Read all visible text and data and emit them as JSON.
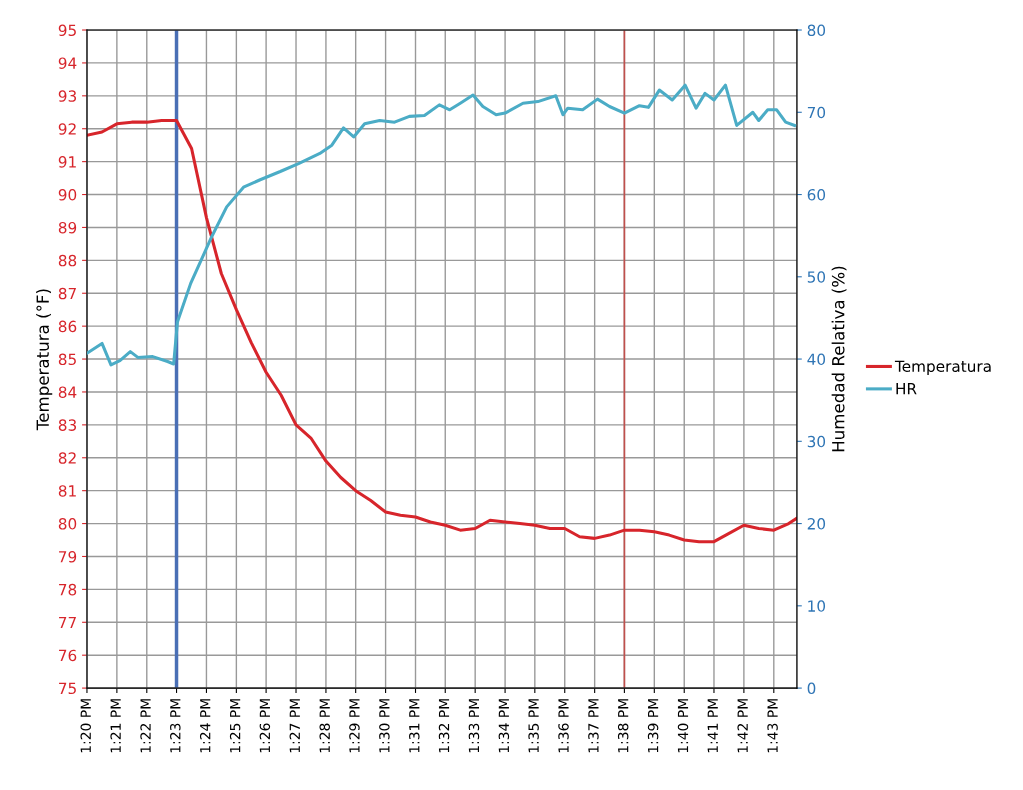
{
  "chart_data": {
    "type": "line",
    "ylabel": "Temperatura (°F)",
    "y2label": "Humedad Relativa (%)",
    "xlim": [
      13.3333,
      13.7296
    ],
    "ylim": [
      75,
      95
    ],
    "y2lim": [
      0,
      80
    ],
    "xticks": [
      {
        "value": 13.3333,
        "label": "1:20 PM"
      },
      {
        "value": 13.35,
        "label": "1:21 PM"
      },
      {
        "value": 13.3667,
        "label": "1:22 PM"
      },
      {
        "value": 13.3833,
        "label": "1:23 PM"
      },
      {
        "value": 13.4,
        "label": "1:24 PM"
      },
      {
        "value": 13.4167,
        "label": "1:25 PM"
      },
      {
        "value": 13.4333,
        "label": "1:26 PM"
      },
      {
        "value": 13.45,
        "label": "1:27 PM"
      },
      {
        "value": 13.4667,
        "label": "1:28 PM"
      },
      {
        "value": 13.4833,
        "label": "1:29 PM"
      },
      {
        "value": 13.5,
        "label": "1:30 PM"
      },
      {
        "value": 13.5167,
        "label": "1:31 PM"
      },
      {
        "value": 13.5333,
        "label": "1:32 PM"
      },
      {
        "value": 13.55,
        "label": "1:33 PM"
      },
      {
        "value": 13.5667,
        "label": "1:34 PM"
      },
      {
        "value": 13.5833,
        "label": "1:35 PM"
      },
      {
        "value": 13.6,
        "label": "1:36 PM"
      },
      {
        "value": 13.6167,
        "label": "1:37 PM"
      },
      {
        "value": 13.6333,
        "label": "1:38 PM"
      },
      {
        "value": 13.65,
        "label": "1:39 PM"
      },
      {
        "value": 13.6667,
        "label": "1:40 PM"
      },
      {
        "value": 13.6833,
        "label": "1:41 PM"
      },
      {
        "value": 13.7,
        "label": "1:42 PM"
      },
      {
        "value": 13.7167,
        "label": "1:43 PM"
      }
    ],
    "yticks": [
      75,
      76,
      77,
      78,
      79,
      80,
      81,
      82,
      83,
      84,
      85,
      86,
      87,
      88,
      89,
      90,
      91,
      92,
      93,
      94,
      95
    ],
    "y2ticks": [
      0,
      10,
      20,
      30,
      40,
      50,
      60,
      70,
      80
    ],
    "grid": true,
    "legend": "right",
    "marker": "none",
    "line_style": "solid",
    "ref_lines": [
      {
        "axis": "x",
        "value": 13.3833,
        "color": "#4a6fb5"
      },
      {
        "axis": "x",
        "value": 13.6333,
        "color": "#c0504d"
      }
    ],
    "series": [
      {
        "name": "Temperatura",
        "color": "#d7252b",
        "x": [
          13.3333,
          13.3417,
          13.35,
          13.3583,
          13.3667,
          13.375,
          13.3833,
          13.3917,
          13.4,
          13.4083,
          13.4167,
          13.425,
          13.4333,
          13.4417,
          13.45,
          13.4583,
          13.4667,
          13.475,
          13.4833,
          13.4917,
          13.5,
          13.5083,
          13.5167,
          13.525,
          13.5333,
          13.5417,
          13.55,
          13.5583,
          13.5667,
          13.575,
          13.5833,
          13.5917,
          13.6,
          13.6083,
          13.6167,
          13.625,
          13.6333,
          13.6417,
          13.65,
          13.6583,
          13.6667,
          13.675,
          13.6833,
          13.6917,
          13.7,
          13.7083,
          13.7167,
          13.725,
          13.7292
        ],
        "values": [
          91.8,
          91.9,
          92.15,
          92.2,
          92.2,
          92.25,
          92.25,
          91.4,
          89.3,
          87.6,
          86.5,
          85.5,
          84.6,
          83.9,
          83.0,
          82.6,
          81.9,
          81.4,
          81.0,
          80.7,
          80.35,
          80.25,
          80.2,
          80.05,
          79.95,
          79.8,
          79.85,
          80.1,
          80.05,
          80.0,
          79.95,
          79.85,
          79.85,
          79.6,
          79.55,
          79.65,
          79.8,
          79.8,
          79.75,
          79.65,
          79.5,
          79.45,
          79.45,
          79.7,
          79.95,
          79.85,
          79.8,
          80.0,
          80.15
        ]
      },
      {
        "name": "HR",
        "color": "#4bacc6",
        "axis": "y2",
        "x": [
          13.3333,
          13.3417,
          13.3467,
          13.3517,
          13.3575,
          13.3617,
          13.37,
          13.3783,
          13.3817,
          13.3838,
          13.3912,
          13.403,
          13.4113,
          13.4207,
          13.43,
          13.4412,
          13.4517,
          13.4633,
          13.47,
          13.4765,
          13.4822,
          13.4883,
          13.4967,
          13.505,
          13.5133,
          13.5217,
          13.53,
          13.5358,
          13.5417,
          13.5488,
          13.5543,
          13.5617,
          13.5667,
          13.5767,
          13.585,
          13.595,
          13.599,
          13.6017,
          13.61,
          13.6183,
          13.625,
          13.6333,
          13.6417,
          13.6467,
          13.6528,
          13.66,
          13.6672,
          13.6733,
          13.6783,
          13.6833,
          13.6897,
          13.696,
          13.705,
          13.7083,
          13.7133,
          13.7183,
          13.7233,
          13.7283
        ],
        "values": [
          40.7,
          41.9,
          39.3,
          39.8,
          40.9,
          40.2,
          40.3,
          39.7,
          39.4,
          44.5,
          49.2,
          54.9,
          58.5,
          60.9,
          61.8,
          62.8,
          63.8,
          65.0,
          66.0,
          68.1,
          67.0,
          68.6,
          69.0,
          68.8,
          69.5,
          69.6,
          70.9,
          70.3,
          71.1,
          72.1,
          70.7,
          69.7,
          69.9,
          71.1,
          71.3,
          72.0,
          69.7,
          70.5,
          70.3,
          71.6,
          70.7,
          69.9,
          70.8,
          70.6,
          72.7,
          71.5,
          73.3,
          70.5,
          72.3,
          71.5,
          73.3,
          68.4,
          70.0,
          69.0,
          70.3,
          70.3,
          68.8,
          68.4
        ]
      }
    ]
  }
}
